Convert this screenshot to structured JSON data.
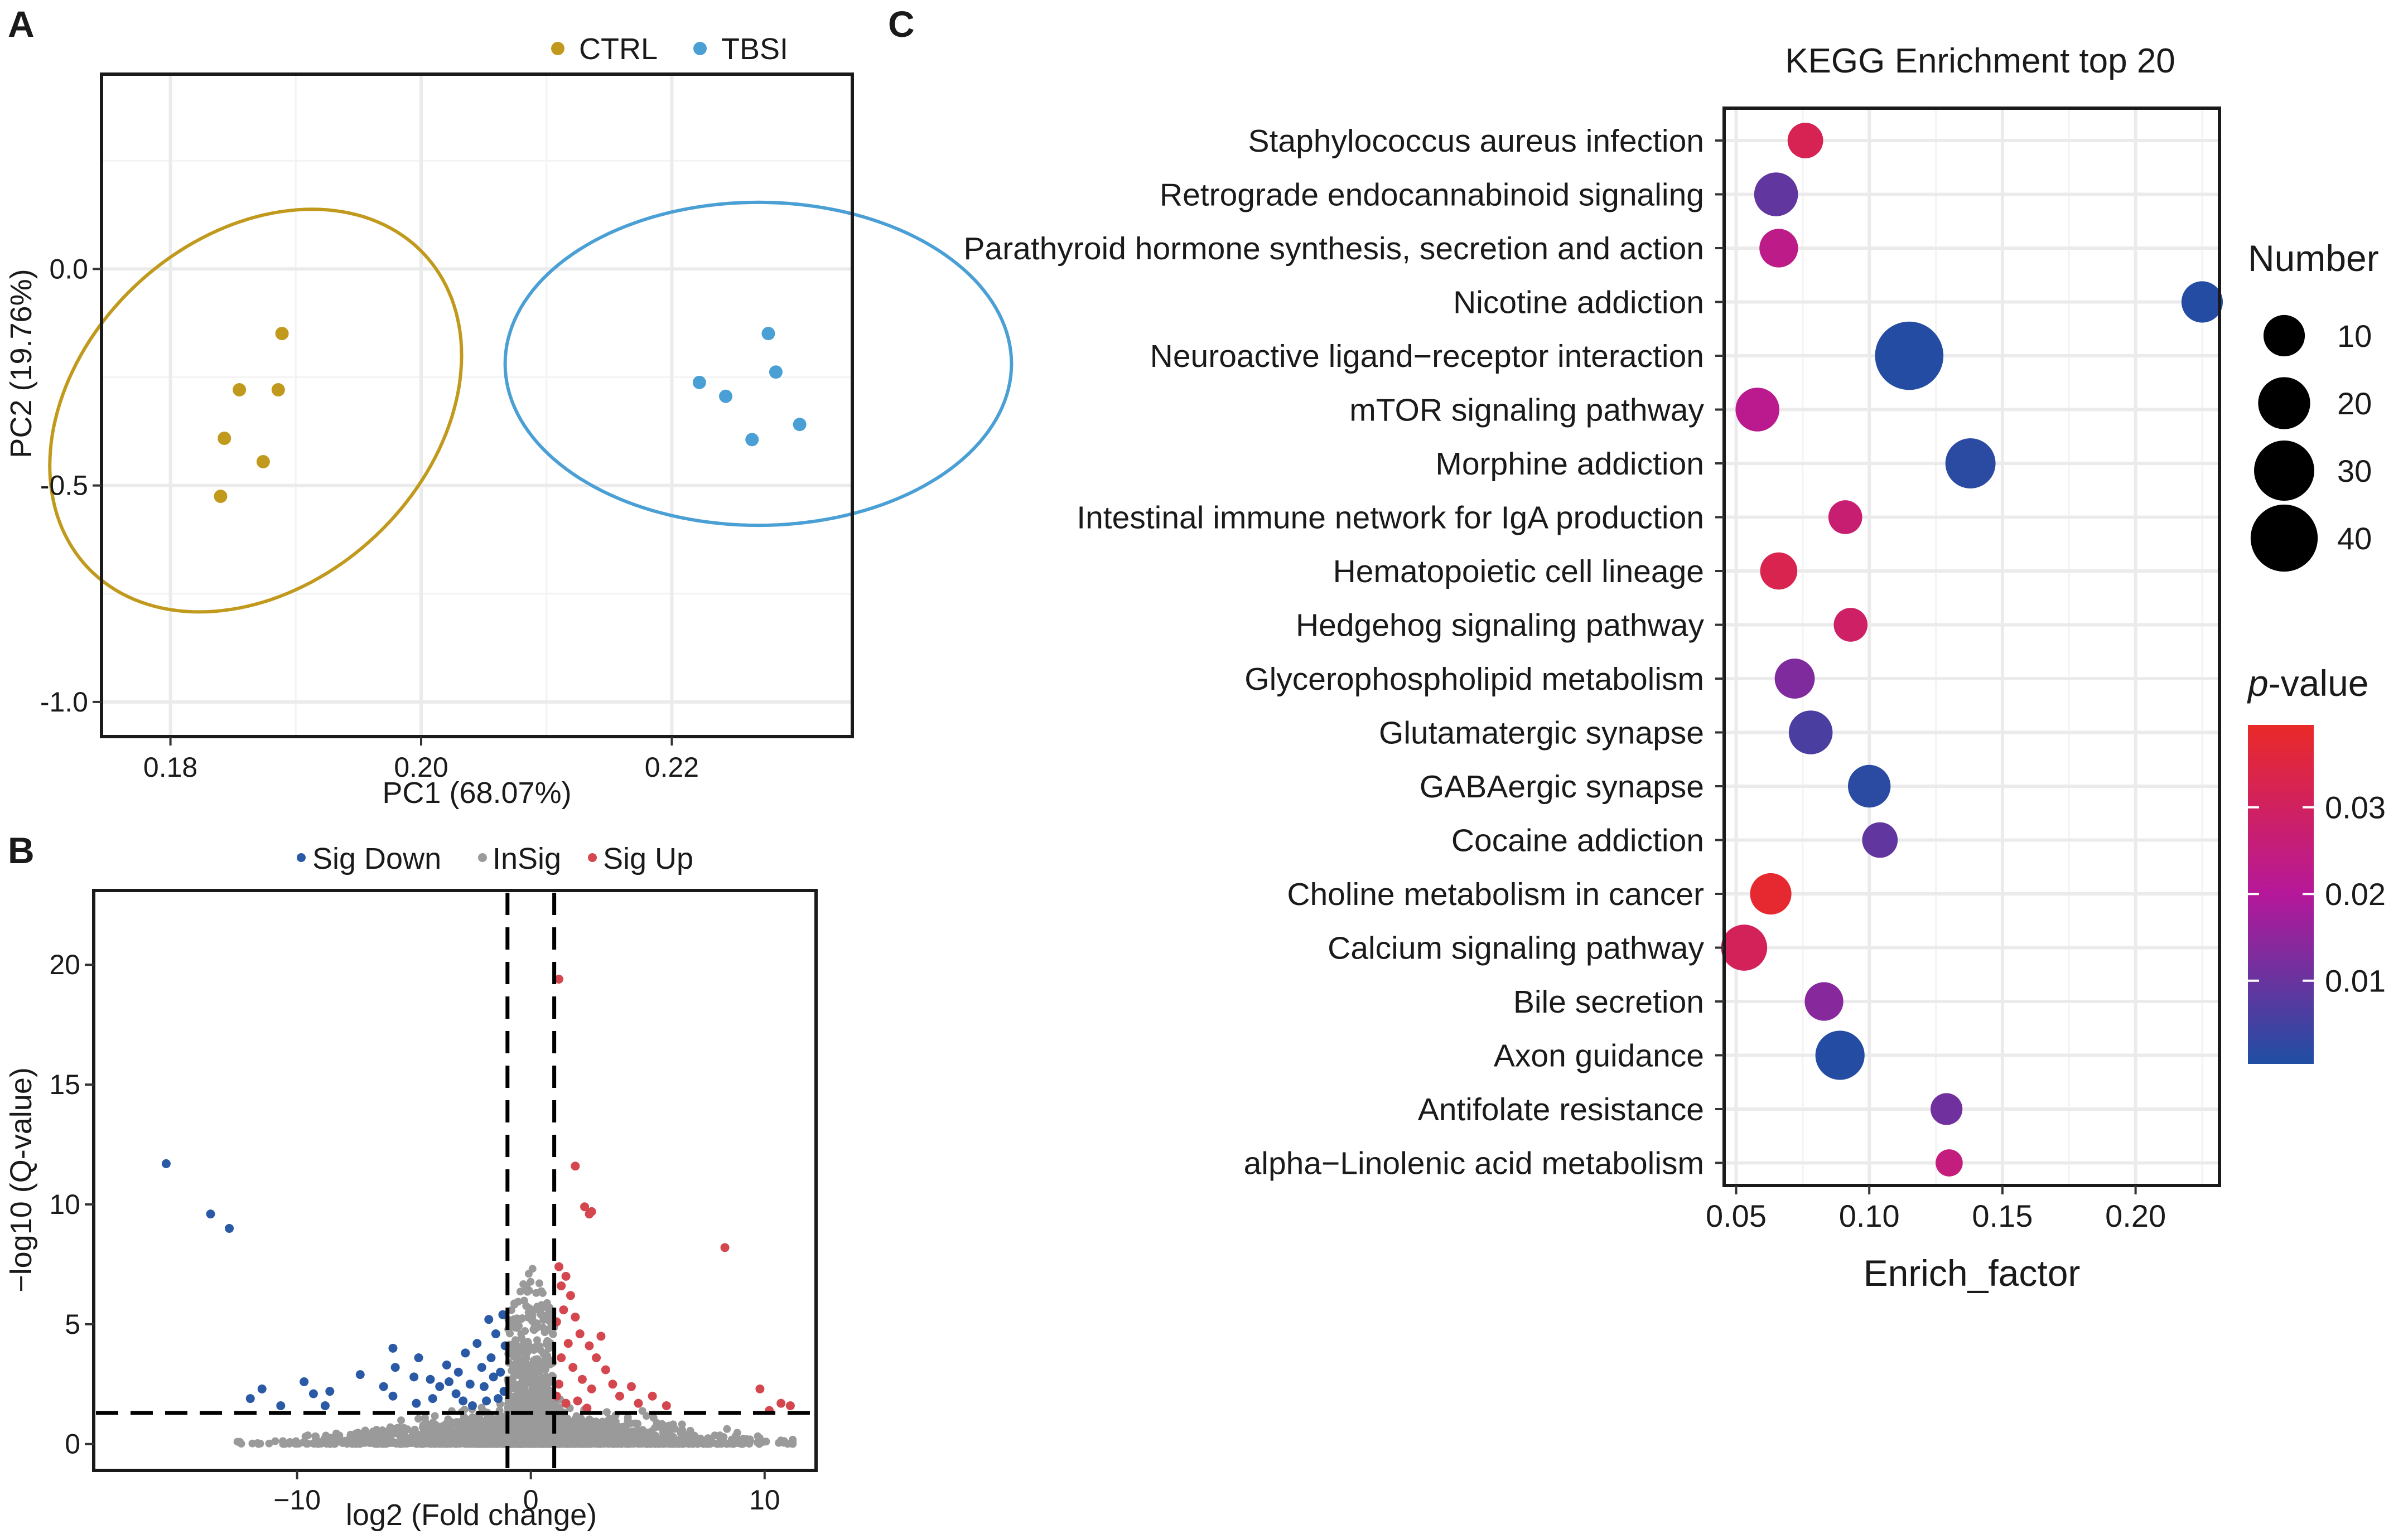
{
  "panels": {
    "a": {
      "letter": "A"
    },
    "b": {
      "letter": "B"
    },
    "c": {
      "letter": "C"
    }
  },
  "chart_data": [
    {
      "id": "pca",
      "type": "scatter",
      "title": "",
      "xlabel": "PC1 (68.07%)",
      "ylabel": "PC2 (19.76%)",
      "xlim": [
        0.1745,
        0.2344
      ],
      "ylim": [
        -1.08,
        0.45
      ],
      "xticks": [
        0.18,
        0.2,
        0.22
      ],
      "xtick_labels": [
        "0.18",
        "0.20",
        "0.22"
      ],
      "yticks": [
        0.0,
        -0.5,
        -1.0
      ],
      "ytick_labels": [
        "0.0",
        "-0.5",
        "-1.0"
      ],
      "legend": {
        "position": "top-right"
      },
      "grid": true,
      "series": [
        {
          "name": "CTRL",
          "color": "#c19a1d",
          "points": [
            [
              0.1889,
              -0.149
            ],
            [
              0.1855,
              -0.279
            ],
            [
              0.1886,
              -0.279
            ],
            [
              0.1843,
              -0.391
            ],
            [
              0.1874,
              -0.445
            ],
            [
              0.184,
              -0.525
            ]
          ],
          "ellipse": {
            "cx": 0.1868,
            "cy": -0.327,
            "rx": 0.0158,
            "ry": 0.465,
            "rotation_deg": 64
          }
        },
        {
          "name": "TBSI",
          "color": "#4a9fd5",
          "points": [
            [
              0.2277,
              -0.149
            ],
            [
              0.2283,
              -0.238
            ],
            [
              0.2222,
              -0.262
            ],
            [
              0.2243,
              -0.294
            ],
            [
              0.2302,
              -0.359
            ],
            [
              0.2264,
              -0.394
            ]
          ],
          "ellipse": {
            "cx": 0.2269,
            "cy": -0.219,
            "rx": 0.0202,
            "ry": 0.373,
            "rotation_deg": 0
          }
        }
      ]
    },
    {
      "id": "volcano",
      "type": "scatter",
      "title": "",
      "xlabel": "log2 (Fold change)",
      "ylabel": "−log10 (Q-value)",
      "xlim": [
        -18.7,
        12.2
      ],
      "ylim": [
        -1.1,
        23.1
      ],
      "xticks": [
        -10,
        0,
        10
      ],
      "xtick_labels": [
        "−10",
        "0",
        "10"
      ],
      "yticks": [
        0,
        5,
        10,
        15,
        20
      ],
      "ytick_labels": [
        "0",
        "5",
        "10",
        "15",
        "20"
      ],
      "thresholds": {
        "fc_low": -1,
        "fc_high": 1,
        "q_line": 1.3
      },
      "legend": {
        "position": "top-center"
      },
      "grid": false,
      "series": [
        {
          "name": "Sig Down",
          "color": "#2a5aa5",
          "points": [
            [
              -15.6,
              11.7
            ],
            [
              -13.7,
              9.6
            ],
            [
              -12.9,
              9.0
            ],
            [
              -11.5,
              2.3
            ],
            [
              -12.0,
              1.9
            ],
            [
              -10.7,
              1.6
            ],
            [
              -9.7,
              2.6
            ],
            [
              -9.3,
              2.1
            ],
            [
              -8.6,
              2.2
            ],
            [
              -8.8,
              1.6
            ],
            [
              -7.3,
              2.9
            ],
            [
              -6.3,
              2.4
            ],
            [
              -5.9,
              2.0
            ],
            [
              -5.8,
              3.2
            ],
            [
              -5.9,
              4.0
            ],
            [
              -5.0,
              2.8
            ],
            [
              -4.9,
              1.7
            ],
            [
              -4.8,
              3.6
            ],
            [
              -4.3,
              2.7
            ],
            [
              -4.2,
              1.9
            ],
            [
              -3.9,
              2.4
            ],
            [
              -3.6,
              3.3
            ],
            [
              -3.5,
              2.6
            ],
            [
              -3.2,
              2.1
            ],
            [
              -3.1,
              3.0
            ],
            [
              -2.9,
              1.8
            ],
            [
              -2.8,
              3.8
            ],
            [
              -2.6,
              2.5
            ],
            [
              -2.5,
              1.6
            ],
            [
              -2.3,
              4.2
            ],
            [
              -2.1,
              3.2
            ],
            [
              -2.0,
              2.4
            ],
            [
              -1.9,
              1.8
            ],
            [
              -1.8,
              5.2
            ],
            [
              -1.7,
              3.6
            ],
            [
              -1.6,
              2.8
            ],
            [
              -1.5,
              4.6
            ],
            [
              -1.4,
              1.9
            ],
            [
              -1.3,
              3.0
            ],
            [
              -1.2,
              5.4
            ],
            [
              -1.15,
              2.2
            ],
            [
              -1.1,
              4.1
            ]
          ]
        },
        {
          "name": "Sig Up",
          "color": "#d4474e",
          "points": [
            [
              1.2,
              19.4
            ],
            [
              1.9,
              11.6
            ],
            [
              2.3,
              9.9
            ],
            [
              2.5,
              9.6
            ],
            [
              2.6,
              9.7
            ],
            [
              8.3,
              8.2
            ],
            [
              1.2,
              7.4
            ],
            [
              1.5,
              7.0
            ],
            [
              1.3,
              6.6
            ],
            [
              1.7,
              6.2
            ],
            [
              1.4,
              5.6
            ],
            [
              1.1,
              5.1
            ],
            [
              1.9,
              5.3
            ],
            [
              2.1,
              4.6
            ],
            [
              1.6,
              4.2
            ],
            [
              2.5,
              4.1
            ],
            [
              2.8,
              3.6
            ],
            [
              3.0,
              4.5
            ],
            [
              3.2,
              3.1
            ],
            [
              1.3,
              3.6
            ],
            [
              1.8,
              3.2
            ],
            [
              2.2,
              2.7
            ],
            [
              1.2,
              2.5
            ],
            [
              2.6,
              2.3
            ],
            [
              3.5,
              2.5
            ],
            [
              3.8,
              2.0
            ],
            [
              4.3,
              2.4
            ],
            [
              4.6,
              1.7
            ],
            [
              5.2,
              2.0
            ],
            [
              5.8,
              1.6
            ],
            [
              1.1,
              2.0
            ],
            [
              1.5,
              1.7
            ],
            [
              2.0,
              1.8
            ],
            [
              2.4,
              1.5
            ],
            [
              9.8,
              2.3
            ],
            [
              10.7,
              1.7
            ],
            [
              11.1,
              1.6
            ],
            [
              10.2,
              1.4
            ]
          ]
        },
        {
          "name": "InSig",
          "color": "#9a9a9a",
          "points": []
        }
      ]
    },
    {
      "id": "kegg",
      "type": "scatter",
      "title": "KEGG Enrichment top 20",
      "xlabel": "Enrich_factor",
      "ylabel": "",
      "xlim": [
        0.0455,
        0.2315
      ],
      "xticks": [
        0.05,
        0.1,
        0.15,
        0.2
      ],
      "xtick_labels": [
        "0.05",
        "0.10",
        "0.15",
        "0.20"
      ],
      "grid": true,
      "pathways": [
        "Staphylococcus aureus infection",
        "Retrograde endocannabinoid signaling",
        "Parathyroid hormone synthesis, secretion and action",
        "Nicotine addiction",
        "Neuroactive ligand−receptor interaction",
        "mTOR signaling pathway",
        "Morphine addiction",
        "Intestinal immune network for IgA production",
        "Hematopoietic cell lineage",
        "Hedgehog signaling pathway",
        "Glycerophospholipid metabolism",
        "Glutamatergic synapse",
        "GABAergic synapse",
        "Cocaine addiction",
        "Choline metabolism in cancer",
        "Calcium signaling pathway",
        "Bile secretion",
        "Axon guidance",
        "Antifolate resistance",
        "alpha−Linolenic acid metabolism"
      ],
      "enrich_factor": [
        0.076,
        0.065,
        0.066,
        0.225,
        0.115,
        0.058,
        0.138,
        0.091,
        0.066,
        0.093,
        0.072,
        0.078,
        0.1,
        0.104,
        0.063,
        0.053,
        0.083,
        0.089,
        0.129,
        0.13
      ],
      "number": [
        6,
        12,
        8,
        10,
        42,
        12,
        18,
        5,
        7,
        5,
        9,
        12,
        11,
        6,
        10,
        14,
        8,
        17,
        4,
        2
      ],
      "p_value": [
        0.032,
        0.009,
        0.023,
        0.001,
        0.001,
        0.022,
        0.002,
        0.027,
        0.033,
        0.029,
        0.013,
        0.006,
        0.002,
        0.009,
        0.038,
        0.031,
        0.014,
        0.001,
        0.011,
        0.025
      ],
      "size_legend": {
        "title": "Number",
        "values": [
          10,
          20,
          30,
          40
        ],
        "labels": [
          "10",
          "20",
          "30",
          "40"
        ]
      },
      "color_legend": {
        "title_italic": "p",
        "title_rest": "-value",
        "range": [
          0.0004,
          0.0395
        ],
        "ticks": [
          0.01,
          0.02,
          0.03
        ],
        "tick_labels": [
          "0.01",
          "0.02",
          "0.03"
        ],
        "low_color": "#1f4ea3",
        "mid_color": "#b5189a",
        "high_color": "#ea2a28"
      }
    }
  ]
}
